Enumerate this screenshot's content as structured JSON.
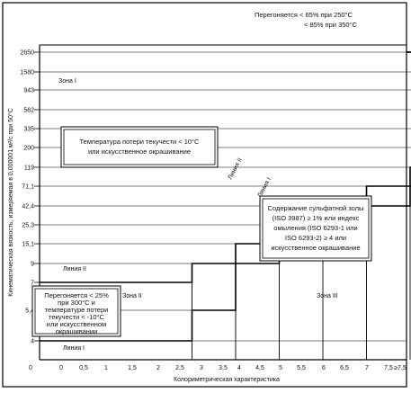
{
  "chart_data": {
    "type": "step",
    "x_ticks": [
      "0",
      "0",
      "0,5",
      "1",
      "1,5",
      "2",
      "2,5",
      "3",
      "3,5",
      "4",
      "4,5",
      "5",
      "5,5",
      "6",
      "6,5",
      "7",
      "7,5",
      "≥7,5"
    ],
    "y_ticks": [
      "2650",
      "1580",
      "943",
      "562",
      "335",
      "200",
      "119",
      "71,1",
      "42,4",
      "25,3",
      "15,1",
      "9",
      "7",
      "5,4",
      "4"
    ],
    "xlabel": "Колориметрическая характеристика",
    "ylabel": "Кинематическая вязкость, измеряемая в 0,000001 м²/с при 50°С",
    "line_i_steps": [
      {
        "x": 0,
        "y": "4"
      },
      {
        "x": 1.5,
        "y": "5,4"
      },
      {
        "x": 2,
        "y": "9"
      },
      {
        "x": 2.5,
        "y": "15,1"
      },
      {
        "x": 3,
        "y": "25,3"
      },
      {
        "x": 3.5,
        "y": "42,4"
      },
      {
        "x": 4,
        "y": "71,1"
      },
      {
        "x": 4.5,
        "y": "119"
      },
      {
        "x": 5,
        "y": "200"
      },
      {
        "x": 5.5,
        "y": "335"
      },
      {
        "x": 6,
        "y": "562"
      },
      {
        "x": 6.5,
        "y": "943"
      },
      {
        "x": 7,
        "y": "1580"
      },
      {
        "x": 7.5,
        "y": "2650"
      }
    ],
    "line_ii_steps": [
      {
        "x": 0,
        "y": "7"
      },
      {
        "x": 1.5,
        "y": "9"
      },
      {
        "x": 2,
        "y": "15,1"
      },
      {
        "x": 2.5,
        "y": "25,3"
      },
      {
        "x": 3,
        "y": "42,4"
      },
      {
        "x": 3.5,
        "y": "71,1"
      },
      {
        "x": 4,
        "y": "119"
      },
      {
        "x": 4.5,
        "y": "200"
      },
      {
        "x": 5,
        "y": "335"
      },
      {
        "x": 5.5,
        "y": "562"
      },
      {
        "x": 6,
        "y": "943"
      },
      {
        "x": 6.5,
        "y": "1580"
      },
      {
        "x": 7,
        "y": "2650"
      }
    ],
    "top_note_line1": "Перегоняется < 65% при 250°С",
    "top_note_line2": "< 85% при 350°С",
    "zone_i": "Зона I",
    "zone_ii": "Зона II",
    "zone_iii": "Зона III",
    "line_i_label": "Линия I",
    "line_ii_label": "Линия II",
    "box_temp": [
      "Температура потери текучести < 10°С",
      "или искусственное окрашивание"
    ],
    "box_ash": [
      "Содержание  сульфатной золы",
      "(ISO 3987) ≥ 1% или индекс",
      "омыления (ISO 6293-1 или",
      "ISO 6293-2) ≥ 4 или",
      "искусственное окрашивание"
    ],
    "box_distill": [
      "Перегоняется < 25%",
      "при 300°С и",
      "температуре потери",
      "текучести < -10°С",
      "или искусственном",
      "окрашивании"
    ]
  }
}
